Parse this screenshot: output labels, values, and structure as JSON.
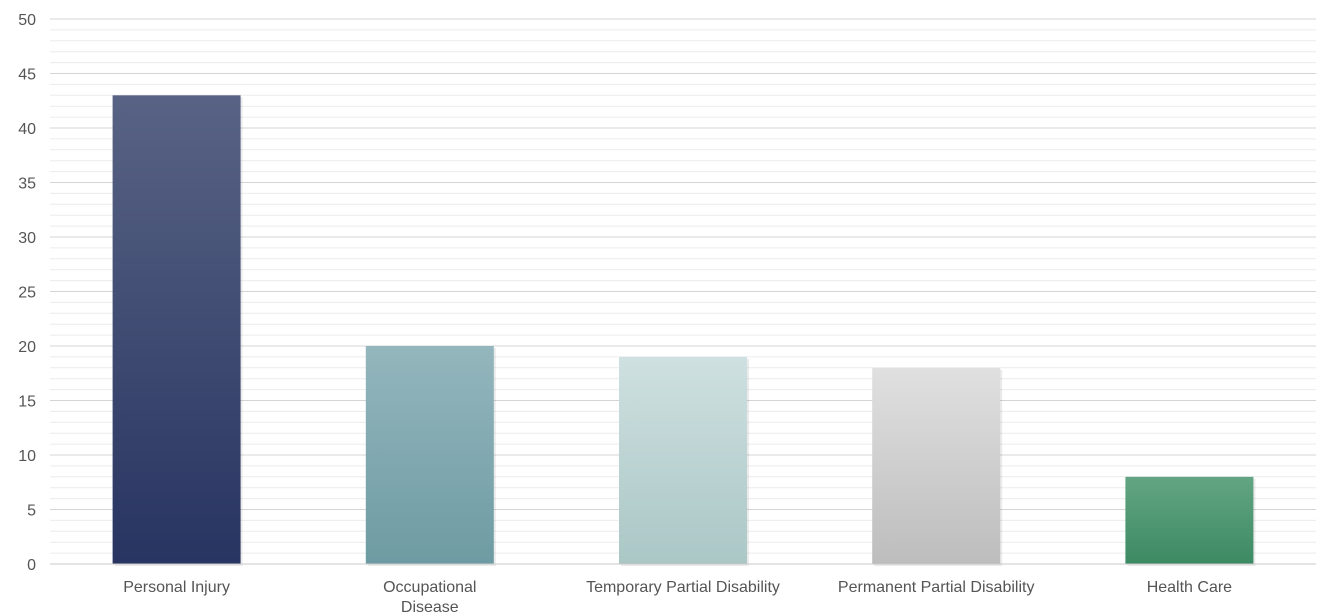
{
  "chart_data": {
    "type": "bar",
    "title": "",
    "xlabel": "",
    "ylabel": "",
    "categories": [
      "Personal Injury",
      "Occupational Disease",
      "Temporary Partial Disability",
      "Permanent Partial Disability",
      "Health Care"
    ],
    "values": [
      43,
      20,
      19,
      18,
      8
    ],
    "ylim": [
      0,
      50
    ],
    "yticks": [
      0,
      5,
      10,
      15,
      20,
      25,
      30,
      35,
      40,
      45,
      50
    ],
    "grid": "major and minor horizontal",
    "legend": "none",
    "colors": [
      {
        "top": "#586384",
        "bottom": "#283461"
      },
      {
        "top": "#94b6bd",
        "bottom": "#6e9ba3"
      },
      {
        "top": "#cfe0e0",
        "bottom": "#aac7c6"
      },
      {
        "top": "#e0e0e0",
        "bottom": "#bdbdbd"
      },
      {
        "top": "#63a583",
        "bottom": "#3c8a63"
      }
    ]
  }
}
